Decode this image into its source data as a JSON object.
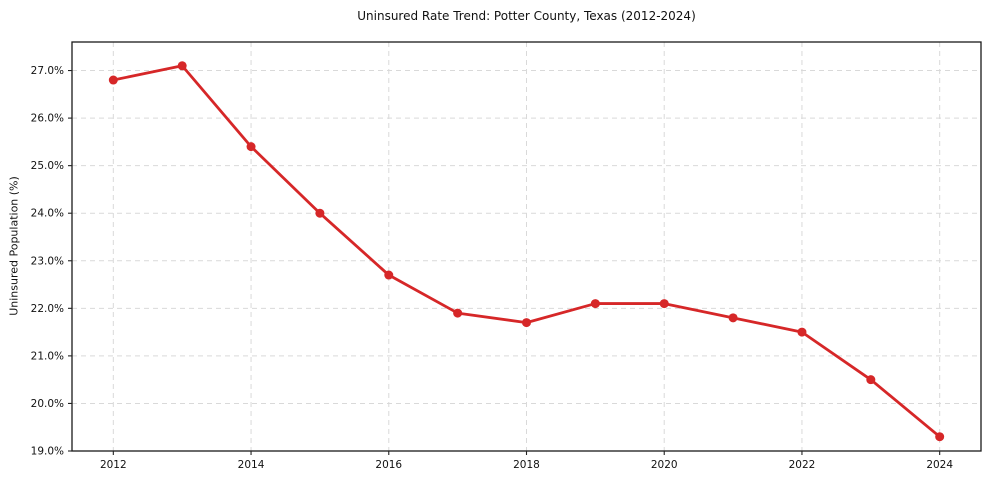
{
  "chart_data": {
    "type": "line",
    "title": "Uninsured Rate Trend: Potter County, Texas (2012-2024)",
    "xlabel": "",
    "ylabel": "Uninsured Population (%)",
    "x": [
      2012,
      2013,
      2014,
      2015,
      2016,
      2017,
      2018,
      2019,
      2020,
      2021,
      2022,
      2023,
      2024
    ],
    "values": [
      26.8,
      27.1,
      25.4,
      24.0,
      22.7,
      21.9,
      21.7,
      22.1,
      22.1,
      21.8,
      21.5,
      20.5,
      19.3
    ],
    "xlim": [
      2011.4,
      2024.6
    ],
    "ylim": [
      19.0,
      27.6
    ],
    "xticks": [
      2012,
      2014,
      2016,
      2018,
      2020,
      2022,
      2024
    ],
    "yticks": [
      19.0,
      20.0,
      21.0,
      22.0,
      23.0,
      24.0,
      25.0,
      26.0,
      27.0
    ],
    "ytick_suffix": "%",
    "grid": true,
    "legend": "none",
    "marker": "circle",
    "line_color": "#d62728",
    "grid_color": "#d9d9d9",
    "background": "#ffffff"
  }
}
